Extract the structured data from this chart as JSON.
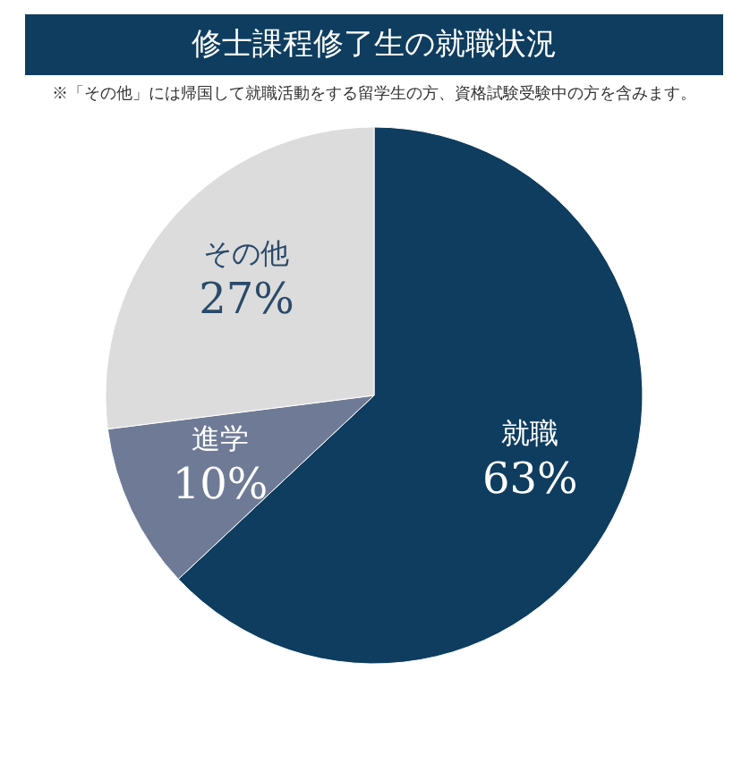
{
  "chart_data": {
    "type": "pie",
    "title": "修士課程修了生の就職状況",
    "subtitle": "※「その他」には帰国して就職活動をする留学生の方、資格試験受験中の方を含みます。",
    "categories": [
      "就職",
      "進学",
      "その他"
    ],
    "values": [
      63,
      10,
      27
    ],
    "colors": [
      "#0e3d5f",
      "#6f7b96",
      "#dcdcdc"
    ],
    "value_labels": [
      "63%",
      "10%",
      "27%"
    ],
    "legend": false
  }
}
